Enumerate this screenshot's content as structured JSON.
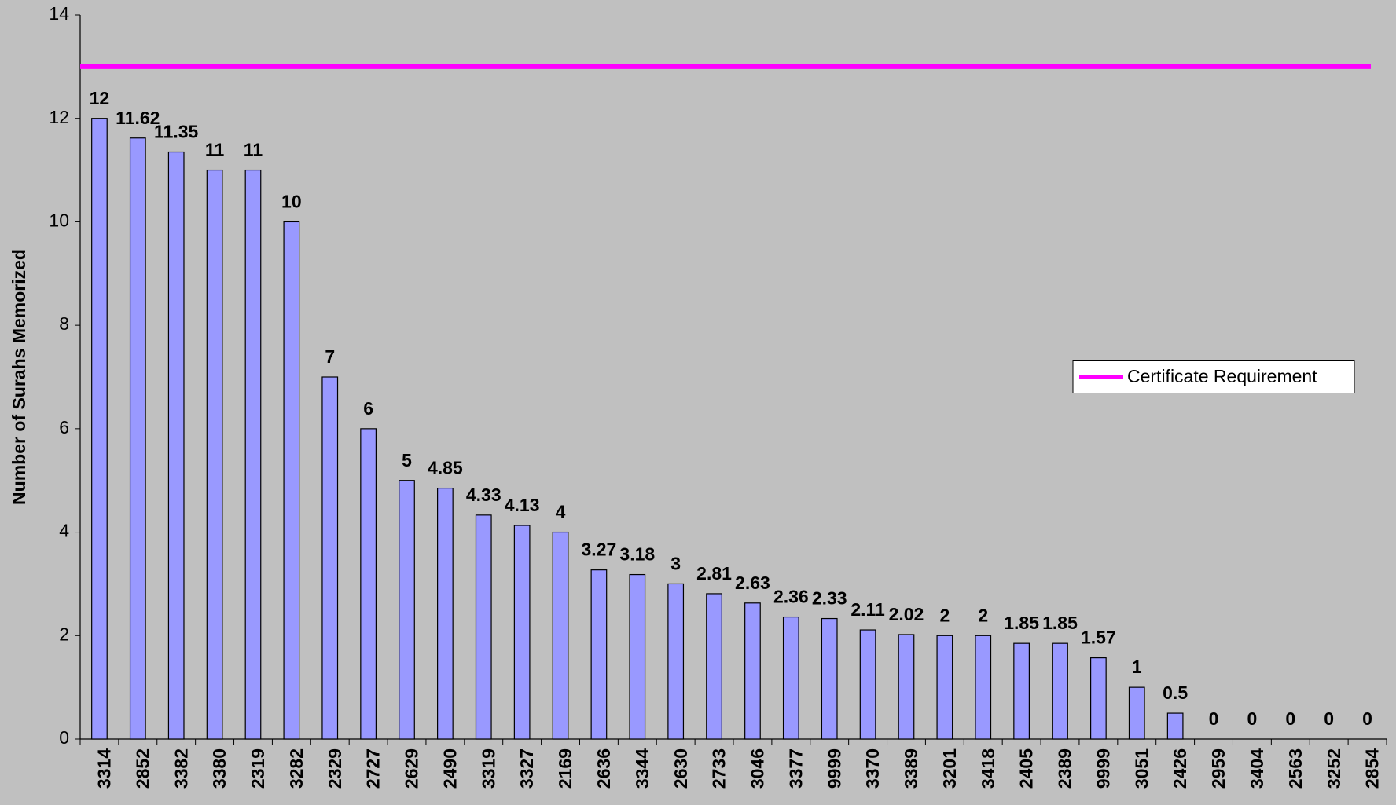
{
  "chart_data": {
    "type": "bar",
    "y_label": "Number of Surahs Memorized",
    "categories": [
      "3314",
      "2852",
      "3382",
      "3380",
      "2319",
      "3282",
      "2329",
      "2727",
      "2629",
      "2490",
      "3319",
      "3327",
      "2169",
      "2636",
      "3344",
      "2630",
      "2733",
      "3046",
      "3377",
      "9999",
      "3370",
      "3389",
      "3201",
      "3418",
      "2405",
      "2389",
      "9999",
      "3051",
      "2426",
      "2959",
      "3404",
      "2563",
      "3252",
      "2854"
    ],
    "values": [
      12,
      11.62,
      11.35,
      11,
      11,
      10,
      7,
      6,
      5,
      4.85,
      4.33,
      4.13,
      4,
      3.27,
      3.18,
      3,
      2.81,
      2.63,
      2.36,
      2.33,
      2.11,
      2.02,
      2,
      2,
      1.85,
      1.85,
      1.57,
      1,
      0.5,
      0,
      0,
      0,
      0,
      0
    ],
    "color": "#9999ff",
    "reference_line": {
      "name": "Certificate Requirement",
      "value": 13,
      "color": "#ff00ff"
    },
    "legend": "right",
    "ylim": [
      0,
      14
    ],
    "yticks": [
      0,
      2,
      4,
      6,
      8,
      10,
      12,
      14
    ]
  }
}
